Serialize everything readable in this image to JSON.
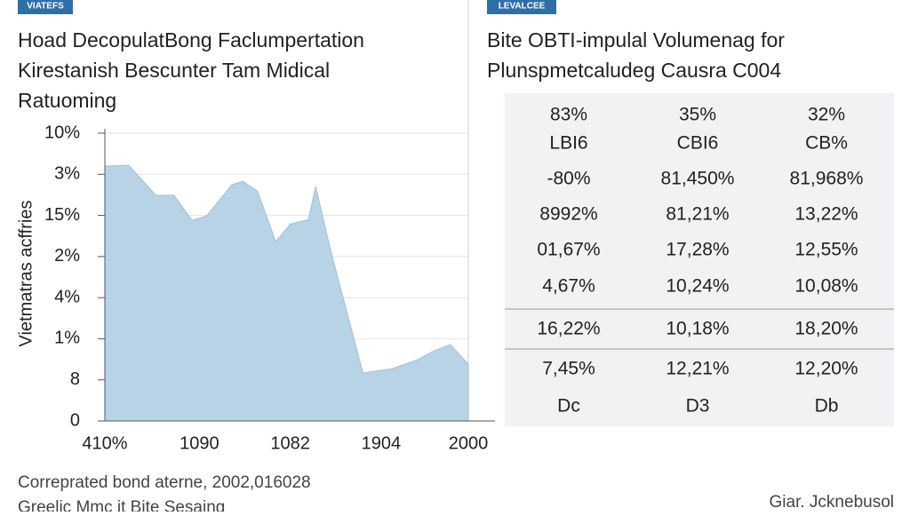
{
  "chart_data": {
    "type": "area",
    "tag": "VIATEFS",
    "title": [
      "Hoad DecopulatBong Faclumpertation",
      "Kirestanish Bescunter Tam Midical",
      "Ratuoming"
    ],
    "y_label": "Vietmatras acffries",
    "x": [
      0,
      6.6,
      14,
      19,
      24,
      28,
      35,
      38,
      42,
      47,
      51,
      56,
      58,
      62,
      71,
      79,
      86,
      90,
      95,
      100
    ],
    "values": [
      6.2,
      6.22,
      5.49,
      5.49,
      4.88,
      4.99,
      5.75,
      5.83,
      5.59,
      4.36,
      4.79,
      4.9,
      5.7,
      4.19,
      1.17,
      1.27,
      1.49,
      1.68,
      1.86,
      1.38
    ],
    "color": "#b9d3e6",
    "xlim": [
      0,
      100
    ],
    "xticks": [
      {
        "value": 0,
        "label": "410%"
      },
      {
        "value": 26,
        "label": "1090"
      },
      {
        "value": 51,
        "label": "1082"
      },
      {
        "value": 76,
        "label": "1904"
      },
      {
        "value": 100,
        "label": "2000"
      }
    ],
    "ylim": [
      0,
      7
    ],
    "yticks": [
      0,
      {
        "value": 1,
        "label": "8"
      },
      {
        "value": 2,
        "label": "1%"
      },
      {
        "value": 3,
        "label": "4%"
      },
      {
        "value": 4,
        "label": "2%"
      },
      {
        "value": 5,
        "label": "15%"
      },
      {
        "value": 6,
        "label": "3%"
      },
      {
        "value": 7,
        "label": "10%"
      }
    ],
    "grid": true
  },
  "table": {
    "tag": "LEVALCEE",
    "title": [
      "Bite OBTI-impulal Volumenag for",
      "Plunspmetcaludeg Causra C004"
    ],
    "rows": [
      [
        "83%",
        "35%",
        "32%"
      ],
      [
        "LBI6",
        "CBI6",
        "CB%"
      ],
      [
        "-80%",
        "81,450%",
        "81,968%"
      ],
      [
        "8992%",
        "81,21%",
        "13,22%"
      ],
      [
        "01,67%",
        "17,28%",
        "12,55%"
      ],
      [
        "4,67%",
        "10,24%",
        "10,08%"
      ],
      [
        "16,22%",
        "10,18%",
        "18,20%"
      ],
      [
        "7,45%",
        "12,21%",
        "12,20%"
      ],
      [
        "Dc",
        "D3",
        "Db"
      ]
    ]
  },
  "footer": {
    "left": [
      "Correprated bond aterne, 2002,016028",
      "Greelic Mmc it Bite Sesaing"
    ],
    "right": "Giar. Jcknebusol"
  }
}
